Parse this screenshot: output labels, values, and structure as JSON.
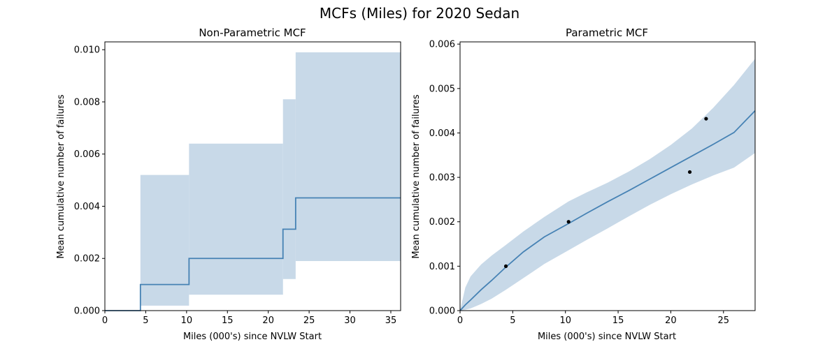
{
  "figure": {
    "suptitle": "MCFs (Miles) for 2020 Sedan"
  },
  "colors": {
    "line": "#4682b4",
    "band": "#c8d9e8",
    "points": "#000000",
    "axes": "#000000",
    "background": "#ffffff"
  },
  "chart_data": [
    {
      "type": "line",
      "subtype": "step-with-confidence-band",
      "title": "Non-Parametric MCF",
      "xlabel": "Miles (000's) since NVLW Start",
      "ylabel": "Mean cumulative number of failures",
      "xlim": [
        0,
        36.2
      ],
      "ylim": [
        0,
        0.0103
      ],
      "xticks": [
        0,
        5,
        10,
        15,
        20,
        25,
        30,
        35
      ],
      "yticks": [
        0.0,
        0.002,
        0.004,
        0.006,
        0.008,
        0.01
      ],
      "ytick_decimals": 3,
      "grid": false,
      "series": [
        {
          "steps": [
            {
              "x_start": 0.0,
              "x_end": 4.35,
              "mcf": 0.0,
              "lower": 0.0,
              "upper": 0.0
            },
            {
              "x_start": 4.35,
              "x_end": 10.3,
              "mcf": 0.001,
              "lower": 0.00019,
              "upper": 0.0052
            },
            {
              "x_start": 10.3,
              "x_end": 21.8,
              "mcf": 0.002,
              "lower": 0.00061,
              "upper": 0.0064
            },
            {
              "x_start": 21.8,
              "x_end": 23.35,
              "mcf": 0.00312,
              "lower": 0.00121,
              "upper": 0.0081
            },
            {
              "x_start": 23.35,
              "x_end": 36.2,
              "mcf": 0.00432,
              "lower": 0.0019,
              "upper": 0.0099
            }
          ]
        }
      ]
    },
    {
      "type": "line",
      "subtype": "fitted-curve-with-confidence-band-and-points",
      "title": "Parametric MCF",
      "xlabel": "Miles (000's) since NVLW Start",
      "ylabel": "Mean cumulative number of failures",
      "xlim": [
        0,
        28
      ],
      "ylim": [
        0,
        0.00605
      ],
      "xticks": [
        0,
        5,
        10,
        15,
        20,
        25
      ],
      "yticks": [
        0.0,
        0.001,
        0.002,
        0.003,
        0.004,
        0.005,
        0.006
      ],
      "ytick_decimals": 3,
      "grid": false,
      "series": [
        {
          "x": [
            0,
            0.5,
            1,
            2,
            3,
            4.35,
            6,
            8,
            10.3,
            12,
            14,
            16,
            18,
            20,
            22,
            24,
            26,
            28
          ],
          "mcf": [
            0,
            0.00013,
            0.00024,
            0.00047,
            0.00068,
            0.00098,
            0.00132,
            0.00166,
            0.00196,
            0.00219,
            0.00245,
            0.0027,
            0.00296,
            0.00322,
            0.00348,
            0.00374,
            0.00401,
            0.0045
          ],
          "lower": [
            0,
            2e-05,
            5e-05,
            0.00015,
            0.00027,
            0.00047,
            0.00073,
            0.00105,
            0.00136,
            0.00159,
            0.00185,
            0.00212,
            0.00238,
            0.00262,
            0.00284,
            0.00304,
            0.00322,
            0.00355
          ],
          "upper": [
            0,
            0.00052,
            0.00077,
            0.00104,
            0.00124,
            0.00148,
            0.00178,
            0.00211,
            0.00246,
            0.00266,
            0.00288,
            0.00313,
            0.00341,
            0.00373,
            0.0041,
            0.00456,
            0.00508,
            0.00567
          ]
        }
      ],
      "points": [
        {
          "x": 4.35,
          "y": 0.001
        },
        {
          "x": 10.3,
          "y": 0.002
        },
        {
          "x": 21.8,
          "y": 0.00312
        },
        {
          "x": 23.35,
          "y": 0.00432
        }
      ]
    }
  ]
}
